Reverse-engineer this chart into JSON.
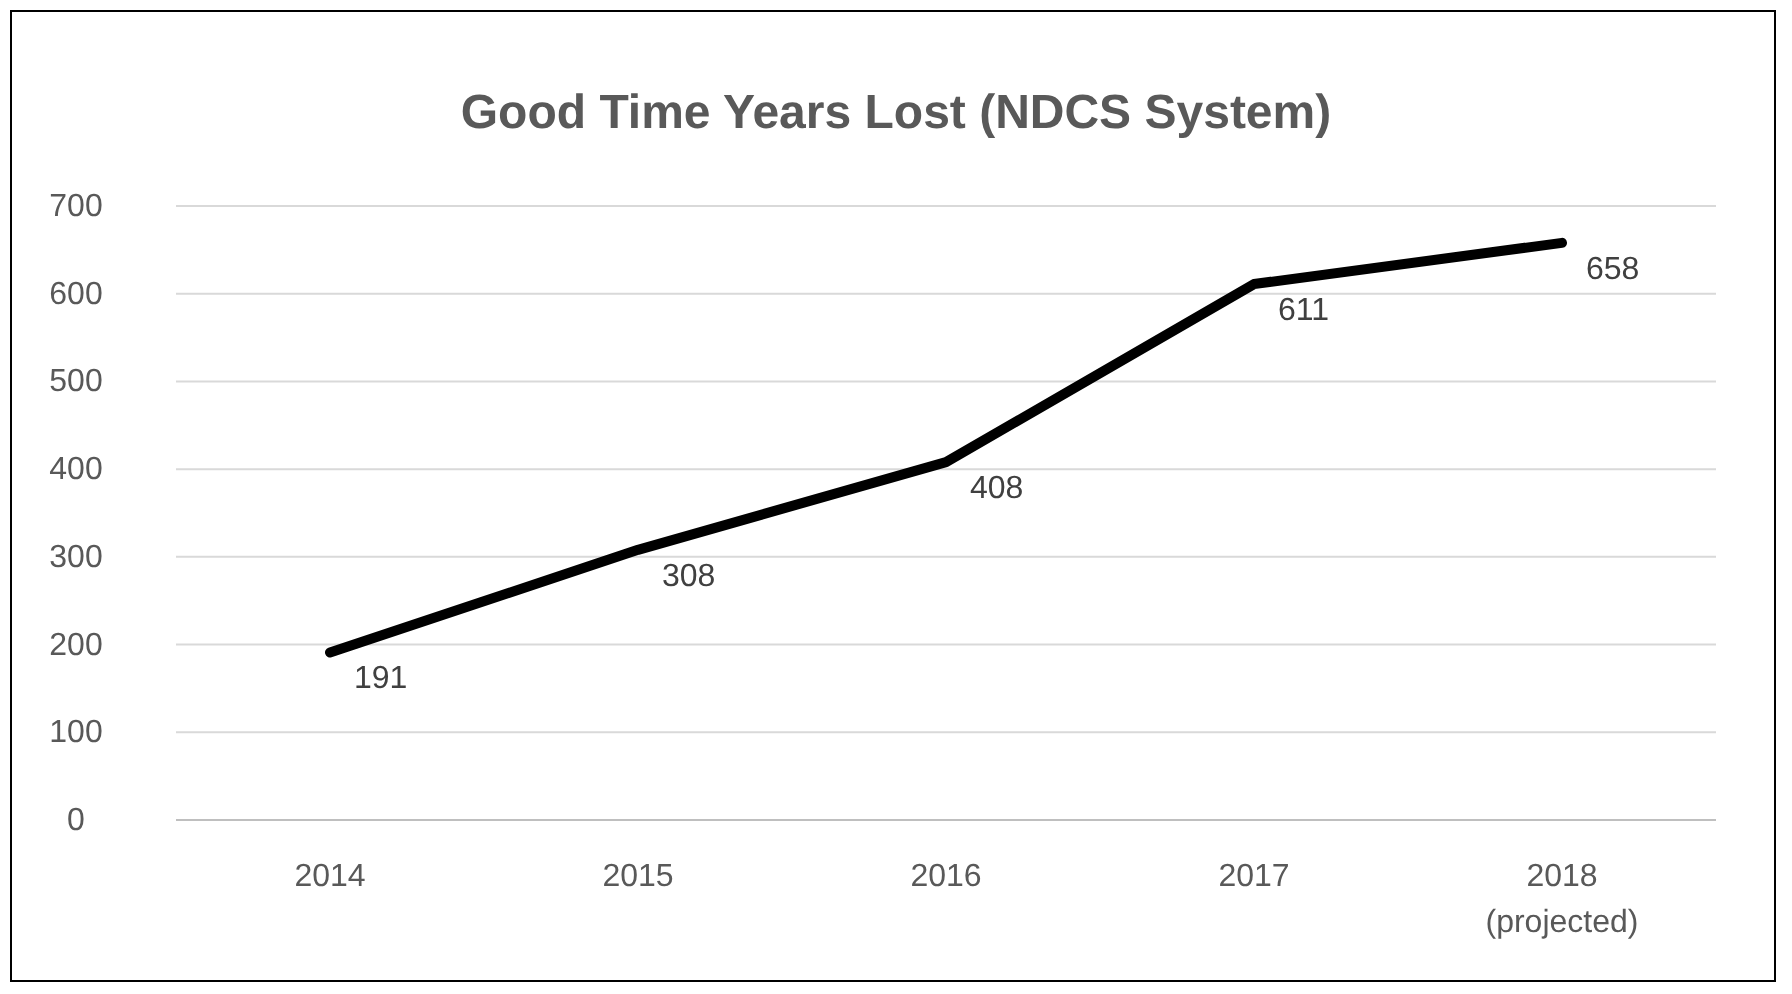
{
  "chart_data": {
    "type": "line",
    "title": "Good Time Years Lost (NDCS System)",
    "categories": [
      "2014",
      "2015",
      "2016",
      "2017",
      "2018\n(projected)"
    ],
    "values": [
      191,
      308,
      408,
      611,
      658
    ],
    "color": "#000000",
    "ylim": [
      0,
      700
    ],
    "yticks": [
      0,
      100,
      200,
      300,
      400,
      500,
      600,
      700
    ],
    "grid": "y",
    "data_labels": true,
    "marker": "none"
  }
}
